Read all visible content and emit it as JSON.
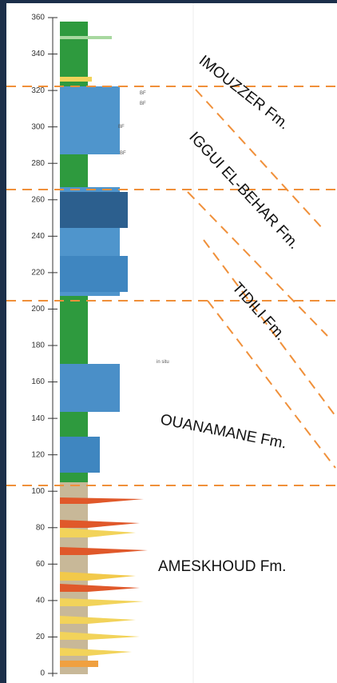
{
  "axis": {
    "ticks": [
      0,
      20,
      40,
      60,
      80,
      100,
      120,
      140,
      160,
      180,
      200,
      220,
      240,
      260,
      280,
      300,
      320,
      340,
      360
    ]
  },
  "formations": [
    "IMOUZZER Fm.",
    "IGGUI EL-BEHAR Fm.",
    "TIDILI Fm.",
    "OUANAMANE Fm.",
    "AMESKHOUD Fm."
  ],
  "annotations": [
    "BF",
    "BF",
    "BF",
    "BF",
    "in situ"
  ]
}
